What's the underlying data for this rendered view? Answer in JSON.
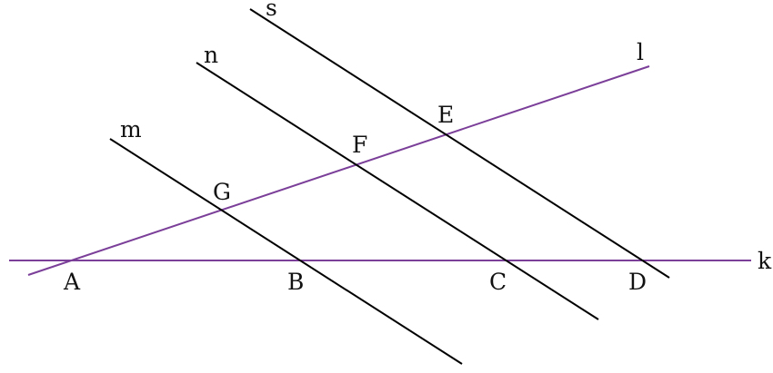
{
  "diagram": {
    "colors": {
      "accent_line": "#7b3f99",
      "black_line": "#000000",
      "text": "#111111"
    },
    "lines": {
      "k": "k",
      "l": "l",
      "m": "m",
      "n": "n",
      "s": "s"
    },
    "points": {
      "A": "A",
      "B": "B",
      "C": "C",
      "D": "D",
      "E": "E",
      "F": "F",
      "G": "G"
    }
  }
}
